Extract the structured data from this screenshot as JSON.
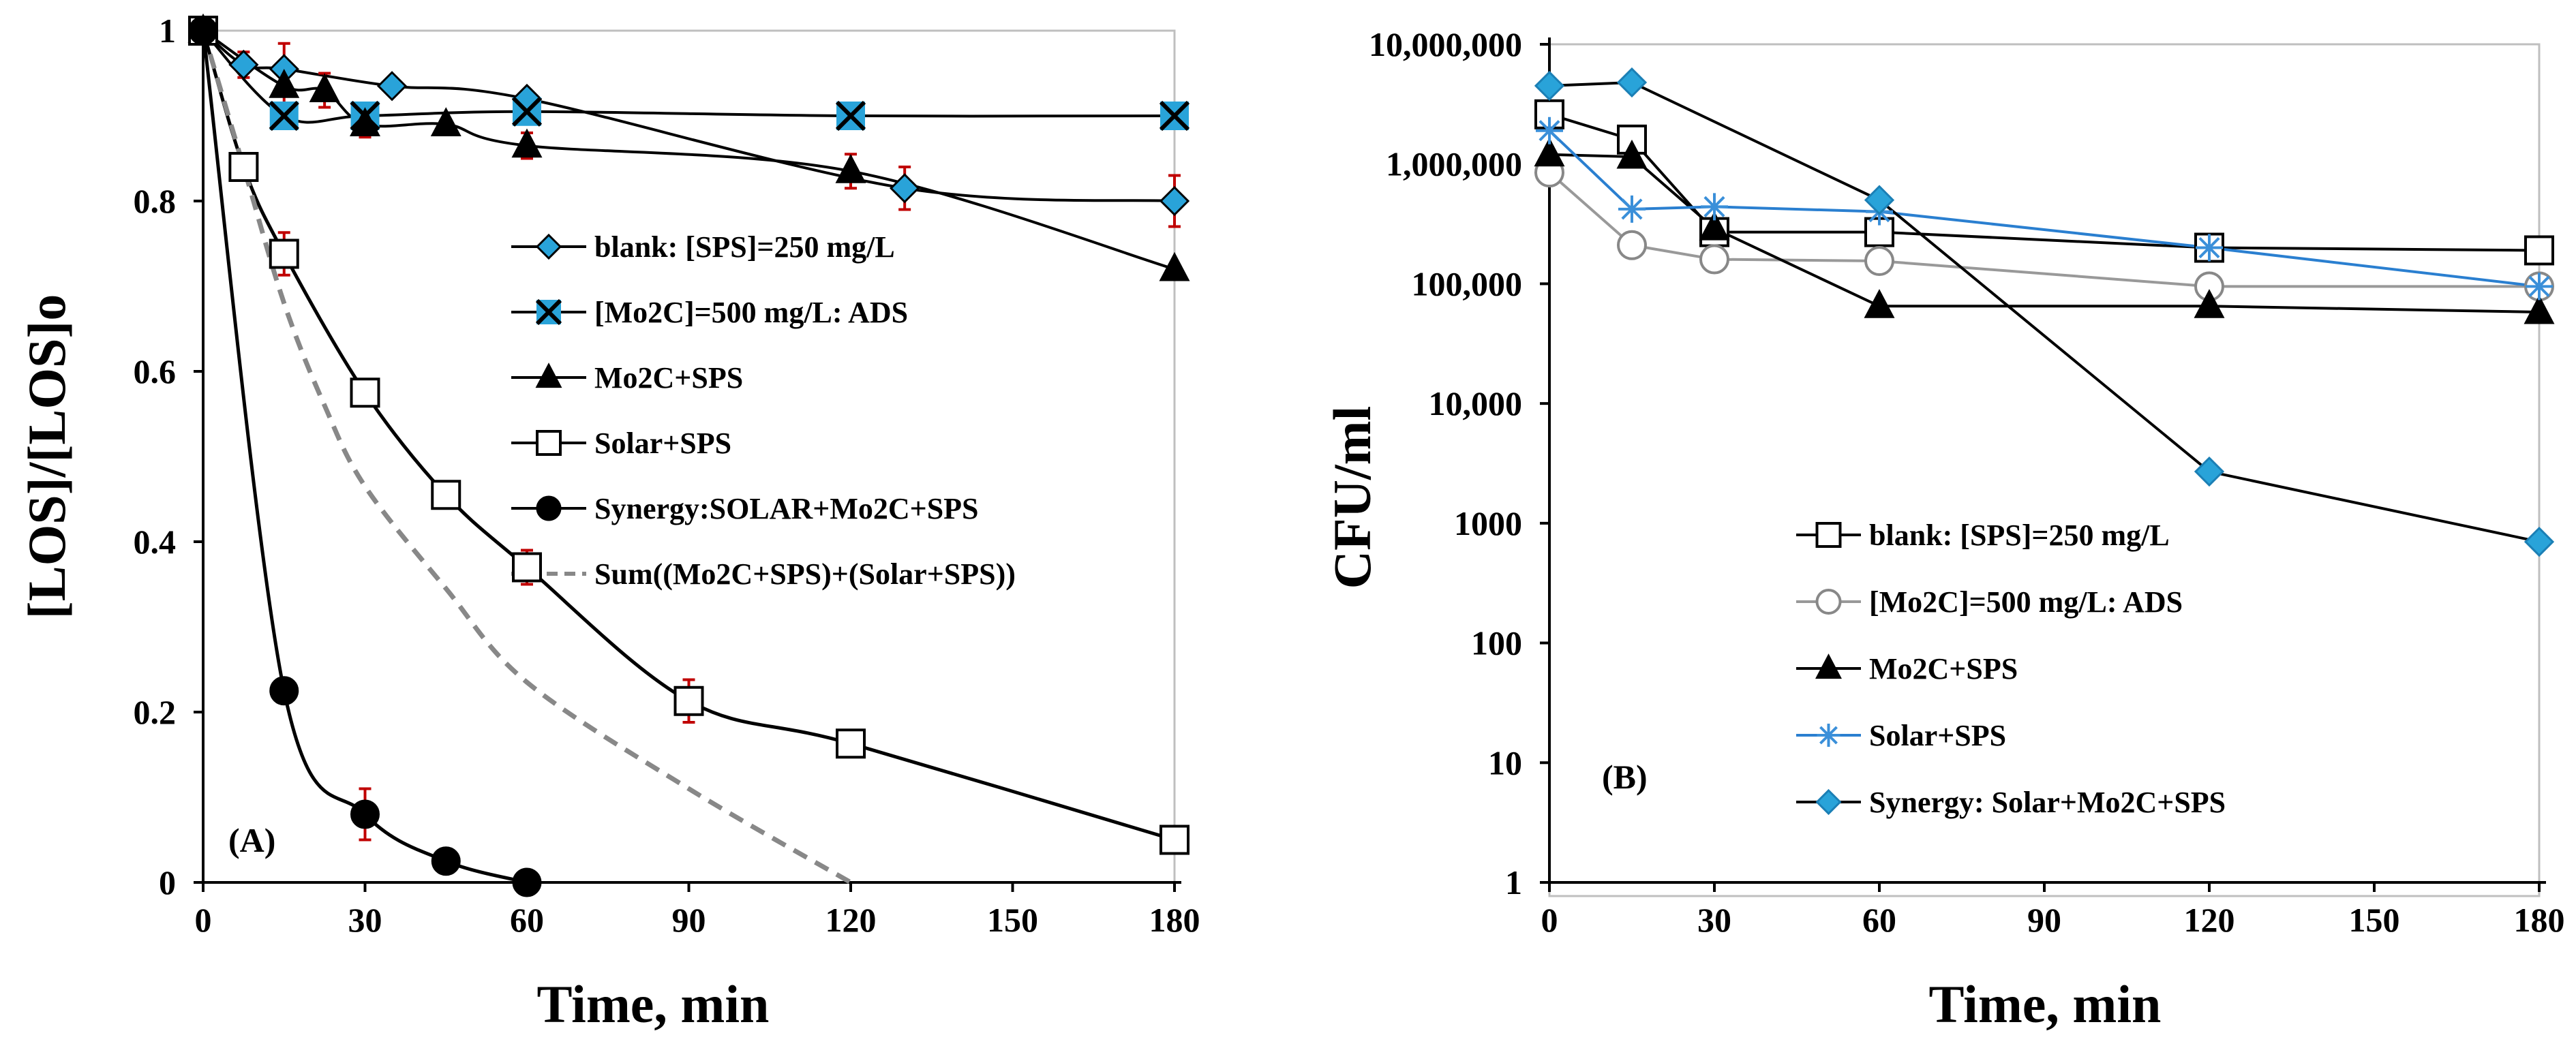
{
  "chart_data": [
    {
      "type": "line",
      "panel": "A",
      "title": "",
      "panel_label": "(A)",
      "xlabel": "Time, min",
      "ylabel": "[LOS]/[LOS]o",
      "xlim": [
        0,
        180
      ],
      "ylim": [
        0,
        1
      ],
      "x_ticks": [
        0,
        30,
        60,
        90,
        120,
        150,
        180
      ],
      "y_ticks": [
        0,
        0.2,
        0.4,
        0.6,
        0.8,
        1
      ],
      "x_tick_labels": [
        "0",
        "30",
        "60",
        "90",
        "120",
        "150",
        "180"
      ],
      "y_tick_labels": [
        "0",
        "0.2",
        "0.4",
        "0.6",
        "0.8",
        "1"
      ],
      "legend_position": "center-right",
      "series": [
        {
          "name": "blank: [SPS]=250 mg/L",
          "marker": "diamond",
          "fill": "#29a3d9",
          "stroke": "#000000",
          "line": "solid",
          "x": [
            0,
            7.5,
            15,
            35,
            60,
            130,
            180
          ],
          "y": [
            1,
            0.96,
            0.955,
            0.935,
            0.92,
            0.815,
            0.8
          ],
          "err": [
            0,
            0.015,
            0.03,
            0,
            0,
            0.025,
            0.03
          ]
        },
        {
          "name": "[Mo2C]=500 mg/L: ADS",
          "marker": "xbox",
          "fill": "#29a3d9",
          "stroke": "#000000",
          "line": "solid",
          "x": [
            0,
            15,
            30,
            60,
            120,
            180
          ],
          "y": [
            1,
            0.9,
            0.9,
            0.905,
            0.9,
            0.9
          ],
          "err": [
            0,
            0,
            0,
            0,
            0,
            0
          ]
        },
        {
          "name": "Mo2C+SPS",
          "marker": "triangle",
          "fill": "#000000",
          "stroke": "#000000",
          "line": "solid",
          "x": [
            0,
            15,
            22.5,
            30,
            45,
            60,
            120,
            180
          ],
          "y": [
            1,
            0.935,
            0.93,
            0.89,
            0.89,
            0.865,
            0.835,
            0.72
          ],
          "err": [
            0,
            0.02,
            0.02,
            0.015,
            0,
            0.015,
            0.02,
            0
          ]
        },
        {
          "name": "Solar+SPS",
          "marker": "square",
          "fill": "#ffffff",
          "stroke": "#000000",
          "line": "solid",
          "x": [
            0,
            7.5,
            15,
            30,
            45,
            60,
            90,
            120,
            180
          ],
          "y": [
            1,
            0.84,
            0.738,
            0.575,
            0.455,
            0.37,
            0.213,
            0.163,
            0.05
          ],
          "err": [
            0,
            0,
            0.025,
            0,
            0,
            0.02,
            0.025,
            0,
            0
          ]
        },
        {
          "name": "Synergy:SOLAR+Mo2C+SPS",
          "marker": "circle",
          "fill": "#000000",
          "stroke": "#000000",
          "line": "solid",
          "x": [
            0,
            15,
            30,
            45,
            60
          ],
          "y": [
            1,
            0.225,
            0.08,
            0.025,
            0
          ],
          "err": [
            0,
            0,
            0.03,
            0,
            0
          ]
        },
        {
          "name": "Sum((Mo2C+SPS)+(Solar+SPS))",
          "marker": "none",
          "fill": "none",
          "stroke": "#888888",
          "line": "dashed",
          "x": [
            0,
            7.5,
            15,
            22.5,
            30,
            45,
            60,
            90,
            120
          ],
          "y": [
            1,
            0.84,
            0.68,
            0.56,
            0.465,
            0.345,
            0.235,
            0.11,
            0
          ],
          "err": [
            0,
            0,
            0,
            0,
            0,
            0,
            0,
            0,
            0
          ]
        }
      ]
    },
    {
      "type": "line",
      "panel": "B",
      "title": "",
      "panel_label": "(B)",
      "xlabel": "Time, min",
      "ylabel": "CFU/ml",
      "yscale": "log",
      "xlim": [
        0,
        180
      ],
      "ylim": [
        1,
        10000000
      ],
      "x_ticks": [
        0,
        30,
        60,
        90,
        120,
        150,
        180
      ],
      "x_tick_labels": [
        "0",
        "30",
        "60",
        "90",
        "120",
        "150",
        "180"
      ],
      "y_ticks": [
        1,
        10,
        100,
        1000,
        10000,
        100000,
        1000000,
        10000000
      ],
      "y_tick_labels": [
        "1",
        "10",
        "100",
        "1000",
        "10,000",
        "100,000",
        "1,000,000",
        "10,000,000"
      ],
      "legend_position": "lower-center",
      "series": [
        {
          "name": "blank: [SPS]=250 mg/L",
          "marker": "square",
          "fill": "#ffffff",
          "stroke": "#000000",
          "line": "solid",
          "line_color": "#000000",
          "x": [
            0,
            15,
            30,
            60,
            120,
            180
          ],
          "y": [
            2600000,
            1600000,
            270000,
            270000,
            200000,
            190000
          ]
        },
        {
          "name": "[Mo2C]=500 mg/L: ADS",
          "marker": "circle-open",
          "fill": "#ffffff",
          "stroke": "#888888",
          "line": "solid",
          "line_color": "#999999",
          "x": [
            0,
            15,
            30,
            60,
            120,
            180
          ],
          "y": [
            850000,
            210000,
            160000,
            155000,
            95000,
            95000
          ]
        },
        {
          "name": "Mo2C+SPS",
          "marker": "triangle",
          "fill": "#000000",
          "stroke": "#000000",
          "line": "solid",
          "line_color": "#000000",
          "x": [
            0,
            15,
            30,
            60,
            120,
            180
          ],
          "y": [
            1200000,
            1150000,
            290000,
            65000,
            65000,
            58000
          ]
        },
        {
          "name": "Solar+SPS",
          "marker": "asterisk",
          "fill": "none",
          "stroke": "#3a8fd9",
          "line": "solid",
          "line_color": "#2a7fd0",
          "x": [
            0,
            15,
            30,
            60,
            120,
            180
          ],
          "y": [
            1900000,
            420000,
            440000,
            400000,
            200000,
            95000
          ]
        },
        {
          "name": "Synergy: Solar+Mo2C+SPS",
          "marker": "diamond",
          "fill": "#29a3d9",
          "stroke": "#1b7fb5",
          "line": "solid",
          "line_color": "#000000",
          "x": [
            0,
            15,
            60,
            120,
            180
          ],
          "y": [
            4500000,
            4800000,
            500000,
            2700,
            700
          ]
        }
      ]
    }
  ]
}
